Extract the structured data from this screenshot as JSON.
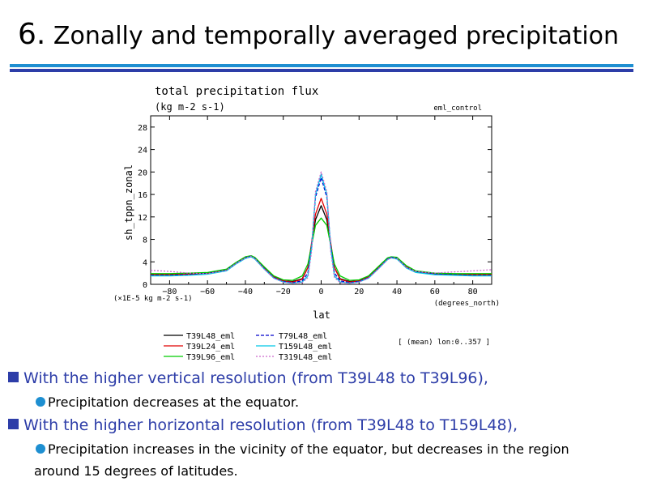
{
  "slide": {
    "number": "6.",
    "title": "Zonally and temporally averaged precipitation"
  },
  "colors": {
    "rule_top": "#1e8fd1",
    "rule_bottom": "#2d3da8",
    "bullet": "#2d3da8",
    "sub_bullet": "#1e8fd1"
  },
  "bullets": [
    {
      "text": "With the higher vertical resolution (from T39L48 to T39L96),",
      "sub": "Precipitation decreases at the equator."
    },
    {
      "text": "With the higher horizontal resolution (from T39L48 to T159L48),",
      "sub_line1": "Precipitation increases in the vicinity of the equator, but decreases in the region",
      "sub_line2": "around 15 degrees of latitudes."
    }
  ],
  "chart_data": {
    "type": "line",
    "title": "total precipitation flux",
    "units": "(kg m-2 s-1)",
    "experiment": "eml_control",
    "xlabel": "lat",
    "xunits": "(degrees_north)",
    "ylabel": "sh_tppn_zonal",
    "yscale_label": "(×1E-5 kg m-2 s-1)",
    "average_note": "[ (mean) lon:0..357 ]",
    "xlim": [
      -90,
      90
    ],
    "ylim": [
      0,
      30
    ],
    "xticks": [
      -80,
      -60,
      -40,
      -20,
      0,
      20,
      40,
      60,
      80
    ],
    "yticks": [
      0,
      4,
      8,
      12,
      16,
      20,
      24,
      28
    ],
    "x": [
      -90,
      -80,
      -70,
      -60,
      -50,
      -45,
      -40,
      -37,
      -35,
      -30,
      -25,
      -20,
      -15,
      -10,
      -7,
      -5,
      -3,
      0,
      3,
      5,
      7,
      10,
      15,
      20,
      25,
      30,
      35,
      37,
      40,
      45,
      50,
      60,
      70,
      80,
      90
    ],
    "series": [
      {
        "name": "T39L48_eml",
        "color": "#000000",
        "dash": "",
        "values": [
          1.8,
          1.8,
          1.9,
          2.0,
          2.6,
          3.8,
          4.8,
          5.0,
          4.7,
          3.0,
          1.4,
          0.6,
          0.5,
          1.0,
          3.0,
          7.0,
          11.5,
          14.0,
          11.5,
          7.0,
          3.0,
          1.0,
          0.5,
          0.6,
          1.4,
          3.0,
          4.6,
          4.8,
          4.7,
          3.2,
          2.3,
          1.9,
          1.8,
          1.8,
          1.8
        ]
      },
      {
        "name": "T39L24_eml",
        "color": "#e00000",
        "dash": "",
        "values": [
          1.7,
          1.7,
          1.8,
          1.9,
          2.5,
          3.7,
          4.7,
          4.9,
          4.6,
          2.9,
          1.3,
          0.6,
          0.4,
          0.9,
          3.0,
          7.5,
          12.5,
          15.3,
          12.5,
          7.5,
          3.0,
          0.9,
          0.4,
          0.6,
          1.3,
          2.9,
          4.5,
          4.8,
          4.6,
          3.1,
          2.2,
          1.8,
          1.7,
          1.7,
          1.7
        ]
      },
      {
        "name": "T39L96_eml",
        "color": "#00cc00",
        "dash": "",
        "values": [
          1.9,
          1.9,
          2.0,
          2.1,
          2.7,
          3.9,
          4.9,
          5.1,
          4.8,
          3.1,
          1.5,
          0.8,
          0.7,
          1.5,
          3.6,
          7.0,
          10.5,
          11.8,
          10.5,
          7.0,
          3.6,
          1.5,
          0.7,
          0.8,
          1.5,
          3.1,
          4.7,
          4.9,
          4.8,
          3.3,
          2.4,
          2.0,
          1.9,
          1.9,
          1.9
        ]
      },
      {
        "name": "T79L48_eml",
        "color": "#0000cc",
        "dash": "4,2",
        "values": [
          1.6,
          1.6,
          1.7,
          1.9,
          2.5,
          3.7,
          4.7,
          5.0,
          4.6,
          2.8,
          1.2,
          0.5,
          0.3,
          0.6,
          2.0,
          7.0,
          15.5,
          19.0,
          15.5,
          7.0,
          2.0,
          0.6,
          0.3,
          0.5,
          1.2,
          2.8,
          4.5,
          4.8,
          4.6,
          3.0,
          2.2,
          1.8,
          1.7,
          1.6,
          1.6
        ]
      },
      {
        "name": "T159L48_eml",
        "color": "#00c8e6",
        "dash": "",
        "values": [
          1.5,
          1.5,
          1.6,
          1.8,
          2.4,
          3.6,
          4.6,
          4.9,
          4.5,
          2.7,
          1.1,
          0.4,
          0.2,
          0.4,
          1.5,
          6.5,
          16.0,
          19.6,
          16.0,
          6.5,
          1.5,
          0.4,
          0.2,
          0.4,
          1.1,
          2.7,
          4.4,
          4.7,
          4.5,
          2.9,
          2.1,
          1.7,
          1.6,
          1.5,
          1.5
        ]
      },
      {
        "name": "T319L48_eml",
        "color": "#cc66cc",
        "dash": "2,2",
        "values": [
          2.5,
          2.3,
          2.0,
          1.9,
          2.5,
          3.7,
          4.7,
          5.0,
          4.6,
          2.7,
          1.1,
          0.4,
          0.2,
          0.3,
          1.2,
          6.0,
          16.5,
          20.0,
          16.5,
          6.0,
          1.2,
          0.3,
          0.2,
          0.4,
          1.1,
          2.7,
          4.4,
          4.7,
          4.6,
          3.0,
          2.3,
          2.0,
          2.2,
          2.4,
          2.6
        ]
      }
    ]
  }
}
